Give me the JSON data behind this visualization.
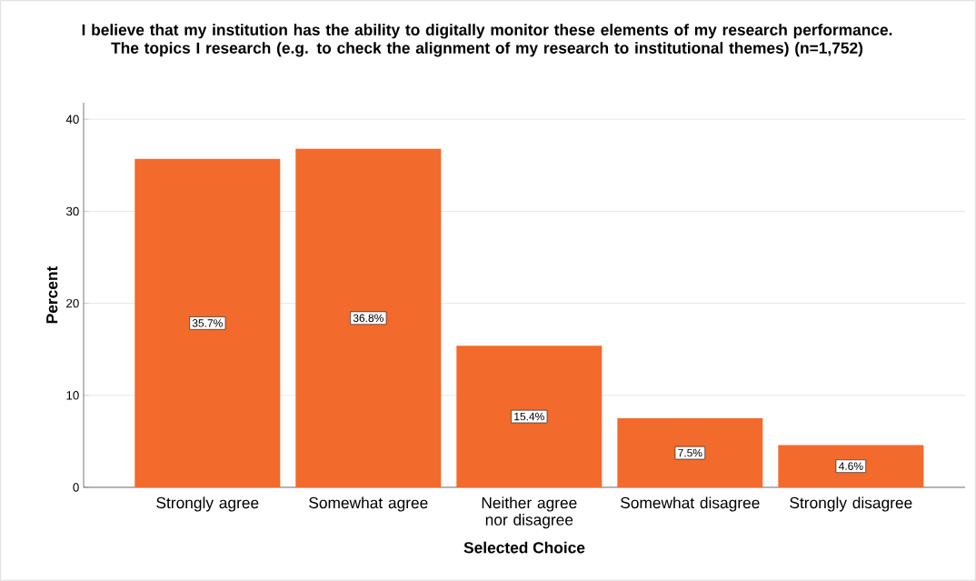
{
  "chart_data": {
    "type": "bar",
    "title": "I believe that my institution has the ability to digitally monitor these elements of my research performance.",
    "subtitle": "The topics I research (e.g. to check the alignment of my research to institutional themes) (n=1,752)",
    "xlabel": "Selected Choice",
    "ylabel": "Percent",
    "categories": [
      "Strongly agree",
      "Somewhat agree",
      "Neither agree nor disagree",
      "Somewhat disagree",
      "Strongly disagree"
    ],
    "values": [
      35.7,
      36.8,
      15.4,
      7.5,
      4.6
    ],
    "value_labels": [
      "35.7%",
      "36.8%",
      "15.4%",
      "7.5%",
      "4.6%"
    ],
    "color": "#f26a2c",
    "ylim": [
      0,
      41.8
    ],
    "yticks": [
      0,
      10,
      20,
      30,
      40
    ],
    "grid": "y"
  }
}
